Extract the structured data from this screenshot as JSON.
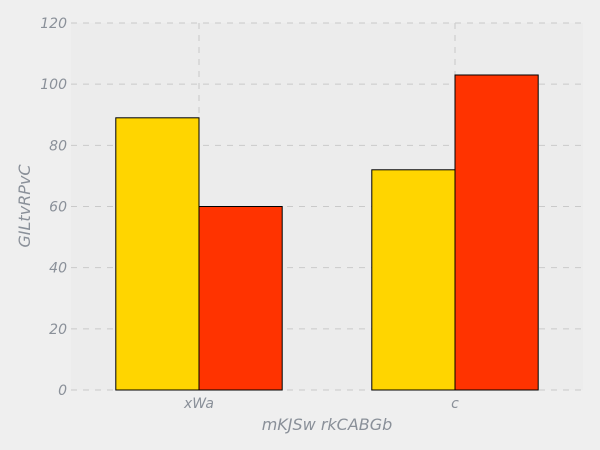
{
  "chart_data": {
    "type": "bar",
    "title": "",
    "xlabel": "mKJSw rkCABGb",
    "ylabel": "GILtvRPvC",
    "categories": [
      "xWa",
      "c"
    ],
    "series": [
      {
        "color": "#ffd500",
        "values": [
          89,
          72
        ]
      },
      {
        "color": "#ff3300",
        "values": [
          60,
          103
        ]
      }
    ],
    "ylim": [
      0,
      120
    ],
    "yticks": [
      0,
      20,
      40,
      60,
      80,
      100,
      120
    ],
    "grid": true,
    "legend": "none"
  }
}
